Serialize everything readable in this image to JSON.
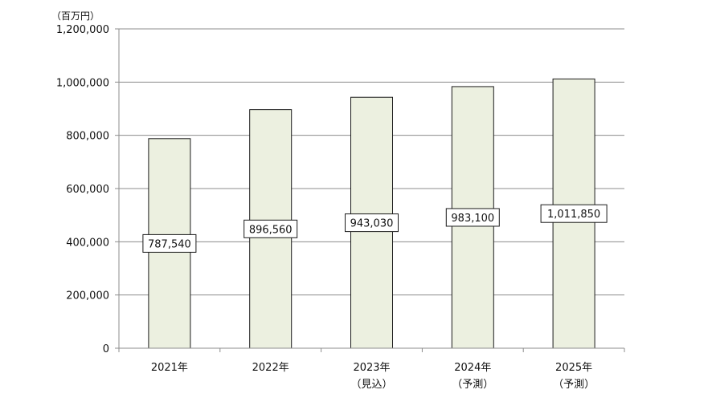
{
  "chart_data": {
    "type": "bar",
    "unit_label": "（百万円）",
    "categories": [
      {
        "line1": "2021年",
        "line2": ""
      },
      {
        "line1": "2022年",
        "line2": ""
      },
      {
        "line1": "2023年",
        "line2": "（見込）"
      },
      {
        "line1": "2024年",
        "line2": "（予測）"
      },
      {
        "line1": "2025年",
        "line2": "（予測）"
      }
    ],
    "values": [
      787540,
      896560,
      943030,
      983100,
      1011850
    ],
    "value_labels": [
      "787,540",
      "896,560",
      "943,030",
      "983,100",
      "1,011,850"
    ],
    "ylim": [
      0,
      1200000
    ],
    "yticks": [
      0,
      200000,
      400000,
      600000,
      800000,
      1000000,
      1200000
    ],
    "ytick_labels": [
      "0",
      "200,000",
      "400,000",
      "600,000",
      "800,000",
      "1,000,000",
      "1,200,000"
    ],
    "grid": true,
    "colors": {
      "bar_fill": "#ecf0e0",
      "bar_stroke": "#1a1a1a",
      "grid": "#8c8c8c",
      "axis": "#8c8c8c"
    }
  }
}
